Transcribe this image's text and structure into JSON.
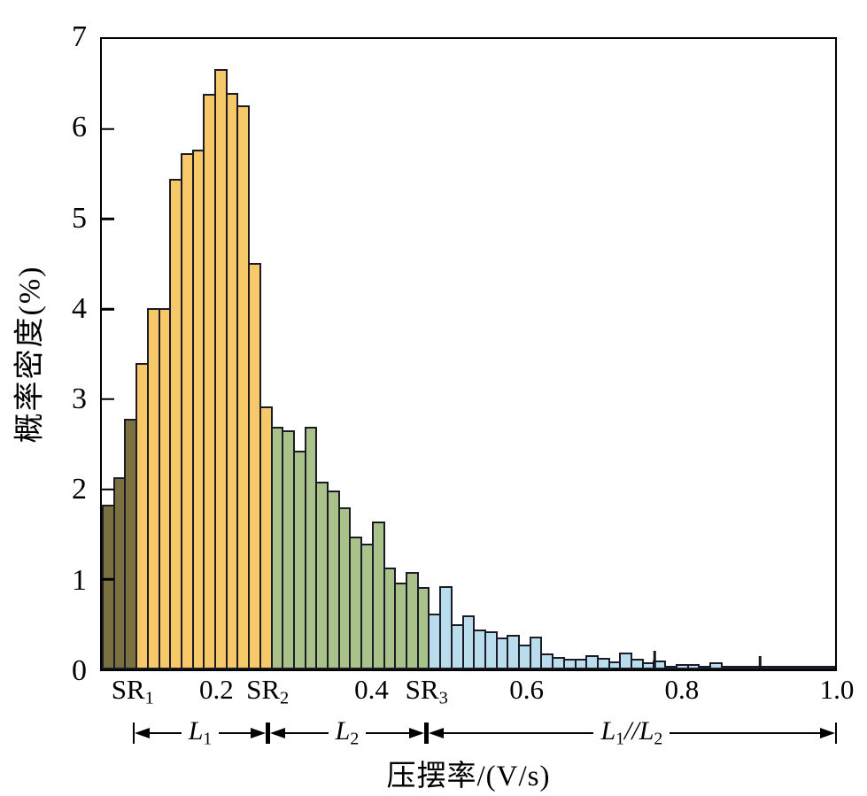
{
  "chart_data": {
    "type": "bar",
    "title": "",
    "xlabel": "压摆率/(V/s)",
    "ylabel": "概率密度(%)",
    "xlim": [
      0.05,
      1.0
    ],
    "ylim": [
      0,
      7
    ],
    "bin_width": 0.0146,
    "grid": "off",
    "legend": "none",
    "y_ticks": [
      0,
      1,
      2,
      3,
      4,
      5,
      6,
      7
    ],
    "x_ticks": [
      {
        "t": "SR",
        "s": "1",
        "v": 0.092
      },
      {
        "t": "0.2",
        "s": "",
        "v": 0.2
      },
      {
        "t": "SR",
        "s": "2",
        "v": 0.266
      },
      {
        "t": "0.4",
        "s": "",
        "v": 0.4
      },
      {
        "t": "SR",
        "s": "3",
        "v": 0.471
      },
      {
        "t": "0.6",
        "s": "",
        "v": 0.6
      },
      {
        "t": "0.8",
        "s": "",
        "v": 0.8
      },
      {
        "t": "1.0",
        "s": "",
        "v": 1.0
      }
    ],
    "series": [
      {
        "name": "below-SR1",
        "color": "#7b7040",
        "values": [
          1.83,
          2.13,
          2.78
        ]
      },
      {
        "name": "L1-region",
        "color": "#f6c868",
        "values": [
          3.4,
          4.01,
          4.01,
          5.45,
          5.73,
          5.77,
          6.39,
          6.67,
          6.4,
          6.26,
          4.51,
          2.92
        ]
      },
      {
        "name": "L2-region",
        "color": "#a9c289",
        "values": [
          2.69,
          2.65,
          2.43,
          2.69,
          2.08,
          1.99,
          1.8,
          1.47,
          1.4,
          1.64,
          1.13,
          0.96,
          1.08,
          0.91
        ]
      },
      {
        "name": "L1-parallel-L2-region",
        "color": "#b9ddec",
        "values": [
          0.62,
          0.92,
          0.5,
          0.6,
          0.44,
          0.42,
          0.35,
          0.38,
          0.28,
          0.36,
          0.18,
          0.14,
          0.12,
          0.12,
          0.16,
          0.13,
          0.09,
          0.19,
          0.12,
          0.08,
          0.1,
          0.03,
          0.06,
          0.06,
          0.03,
          0.08,
          0.04,
          0.01,
          0.02,
          0.04,
          0.02,
          0.04,
          0.04,
          0.01,
          0.03,
          0.04
        ]
      }
    ],
    "spikes": [
      {
        "x": 0.766,
        "h": 0.21
      },
      {
        "x": 0.903,
        "h": 0.15
      }
    ],
    "regions": [
      {
        "from": 0.092,
        "to": 0.266,
        "parts": [
          {
            "t": "L",
            "i": 1
          },
          {
            "t": "1",
            "su": 1
          }
        ]
      },
      {
        "from": 0.266,
        "to": 0.471,
        "parts": [
          {
            "t": "L",
            "i": 1
          },
          {
            "t": "2",
            "su": 1
          }
        ]
      },
      {
        "from": 0.471,
        "to": 1.0,
        "parts": [
          {
            "t": "L",
            "i": 1
          },
          {
            "t": "1",
            "su": 1
          },
          {
            "t": "//",
            "i": 1
          },
          {
            "t": "L",
            "i": 1
          },
          {
            "t": "2",
            "su": 1
          }
        ]
      }
    ],
    "bar_border_color": "#1b1b28",
    "axis_color": "#000000"
  }
}
